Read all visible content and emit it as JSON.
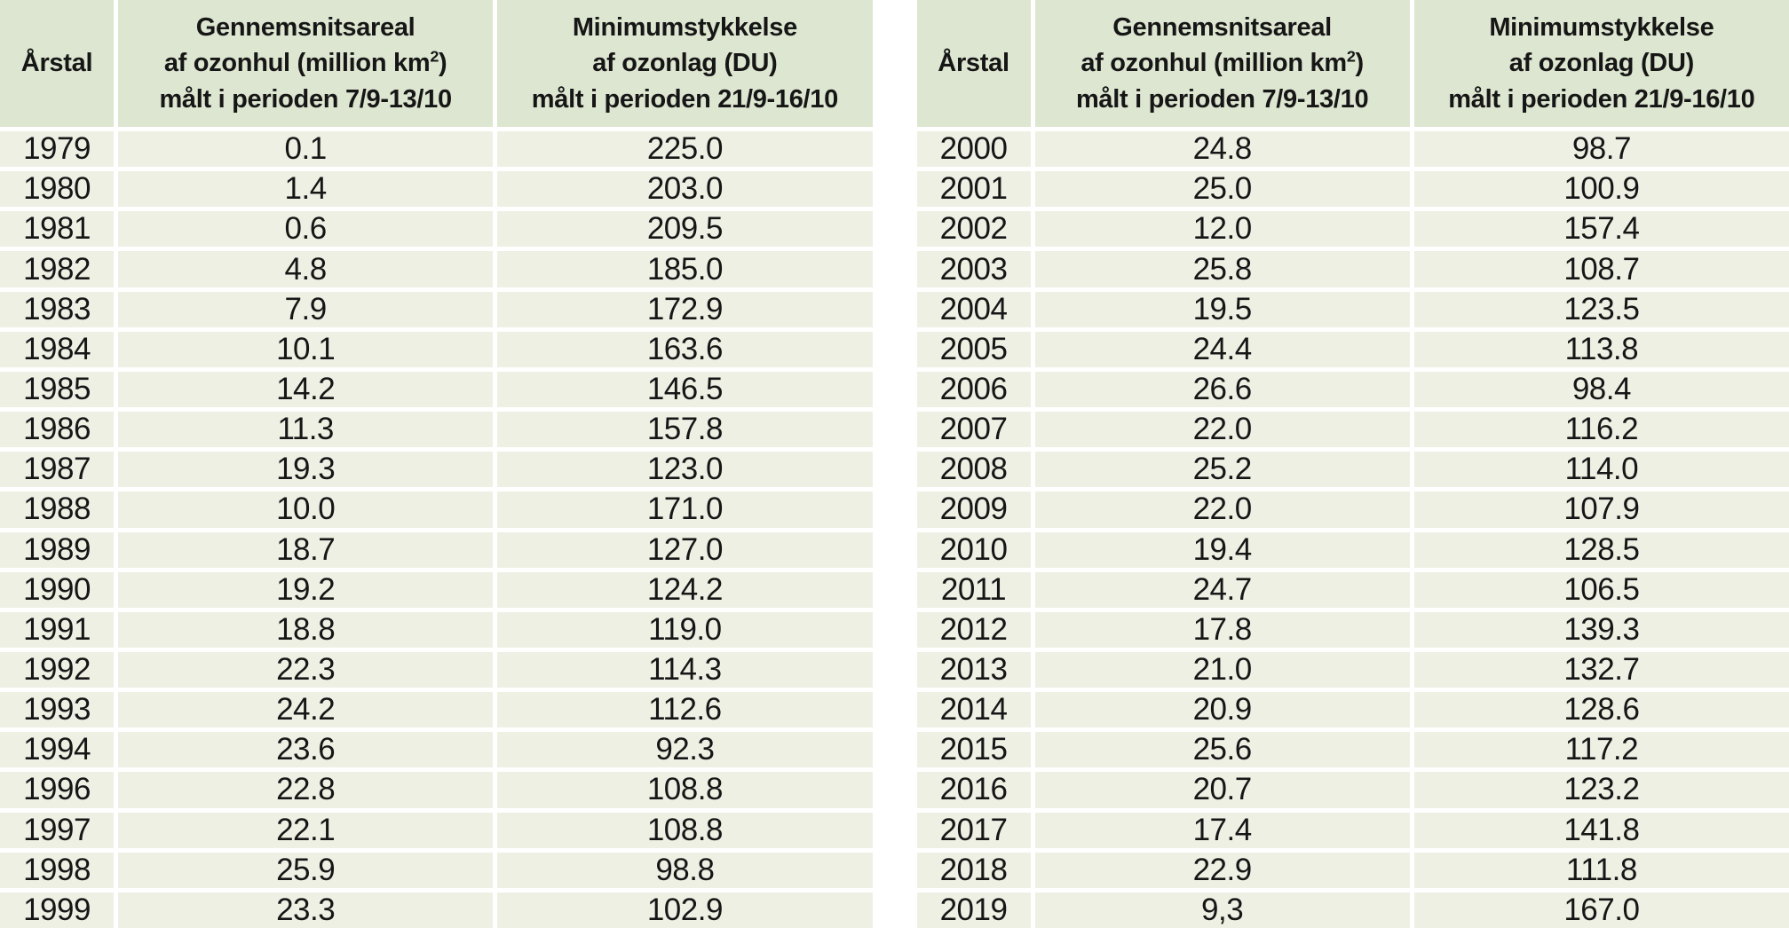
{
  "colors": {
    "header_bg": "#dde6d0",
    "row_bg": "#eef0e4",
    "separator": "#ffffff",
    "text": "#161616"
  },
  "header": {
    "year": "Årstal",
    "area_line1": "Gennemsnitsareal",
    "area_line2_pre": "af ozonhul (million km",
    "area_line2_sup": "2",
    "area_line2_post": ")",
    "area_line3": "målt i perioden 7/9-13/10",
    "thickness_line1": "Minimumstykkelse",
    "thickness_line2": "af ozonlag (DU)",
    "thickness_line3": "målt i perioden 21/9-16/10"
  },
  "chart_data": {
    "type": "table",
    "columns": [
      "Årstal",
      "Gennemsnitsareal af ozonhul (million km2) målt i perioden 7/9-13/10",
      "Minimumstykkelse af ozonlag (DU) målt i perioden 21/9-16/10"
    ],
    "tables": [
      {
        "rows": [
          {
            "year": "1979",
            "area": "0.1",
            "thickness": "225.0"
          },
          {
            "year": "1980",
            "area": "1.4",
            "thickness": "203.0"
          },
          {
            "year": "1981",
            "area": "0.6",
            "thickness": "209.5"
          },
          {
            "year": "1982",
            "area": "4.8",
            "thickness": "185.0"
          },
          {
            "year": "1983",
            "area": "7.9",
            "thickness": "172.9"
          },
          {
            "year": "1984",
            "area": "10.1",
            "thickness": "163.6"
          },
          {
            "year": "1985",
            "area": "14.2",
            "thickness": "146.5"
          },
          {
            "year": "1986",
            "area": "11.3",
            "thickness": "157.8"
          },
          {
            "year": "1987",
            "area": "19.3",
            "thickness": "123.0"
          },
          {
            "year": "1988",
            "area": "10.0",
            "thickness": "171.0"
          },
          {
            "year": "1989",
            "area": "18.7",
            "thickness": "127.0"
          },
          {
            "year": "1990",
            "area": "19.2",
            "thickness": "124.2"
          },
          {
            "year": "1991",
            "area": "18.8",
            "thickness": "119.0"
          },
          {
            "year": "1992",
            "area": "22.3",
            "thickness": "114.3"
          },
          {
            "year": "1993",
            "area": "24.2",
            "thickness": "112.6"
          },
          {
            "year": "1994",
            "area": "23.6",
            "thickness": "92.3"
          },
          {
            "year": "1996",
            "area": "22.8",
            "thickness": "108.8"
          },
          {
            "year": "1997",
            "area": "22.1",
            "thickness": "108.8"
          },
          {
            "year": "1998",
            "area": "25.9",
            "thickness": "98.8"
          },
          {
            "year": "1999",
            "area": "23.3",
            "thickness": "102.9"
          }
        ]
      },
      {
        "rows": [
          {
            "year": "2000",
            "area": "24.8",
            "thickness": "98.7"
          },
          {
            "year": "2001",
            "area": "25.0",
            "thickness": "100.9"
          },
          {
            "year": "2002",
            "area": "12.0",
            "thickness": "157.4"
          },
          {
            "year": "2003",
            "area": "25.8",
            "thickness": "108.7"
          },
          {
            "year": "2004",
            "area": "19.5",
            "thickness": "123.5"
          },
          {
            "year": "2005",
            "area": "24.4",
            "thickness": "113.8"
          },
          {
            "year": "2006",
            "area": "26.6",
            "thickness": "98.4"
          },
          {
            "year": "2007",
            "area": "22.0",
            "thickness": "116.2"
          },
          {
            "year": "2008",
            "area": "25.2",
            "thickness": "114.0"
          },
          {
            "year": "2009",
            "area": "22.0",
            "thickness": "107.9"
          },
          {
            "year": "2010",
            "area": "19.4",
            "thickness": "128.5"
          },
          {
            "year": "2011",
            "area": "24.7",
            "thickness": "106.5"
          },
          {
            "year": "2012",
            "area": "17.8",
            "thickness": "139.3"
          },
          {
            "year": "2013",
            "area": "21.0",
            "thickness": "132.7"
          },
          {
            "year": "2014",
            "area": "20.9",
            "thickness": "128.6"
          },
          {
            "year": "2015",
            "area": "25.6",
            "thickness": "117.2"
          },
          {
            "year": "2016",
            "area": "20.7",
            "thickness": "123.2"
          },
          {
            "year": "2017",
            "area": "17.4",
            "thickness": "141.8"
          },
          {
            "year": "2018",
            "area": "22.9",
            "thickness": "111.8"
          },
          {
            "year": "2019",
            "area": "9,3",
            "thickness": "167.0"
          }
        ]
      }
    ]
  }
}
